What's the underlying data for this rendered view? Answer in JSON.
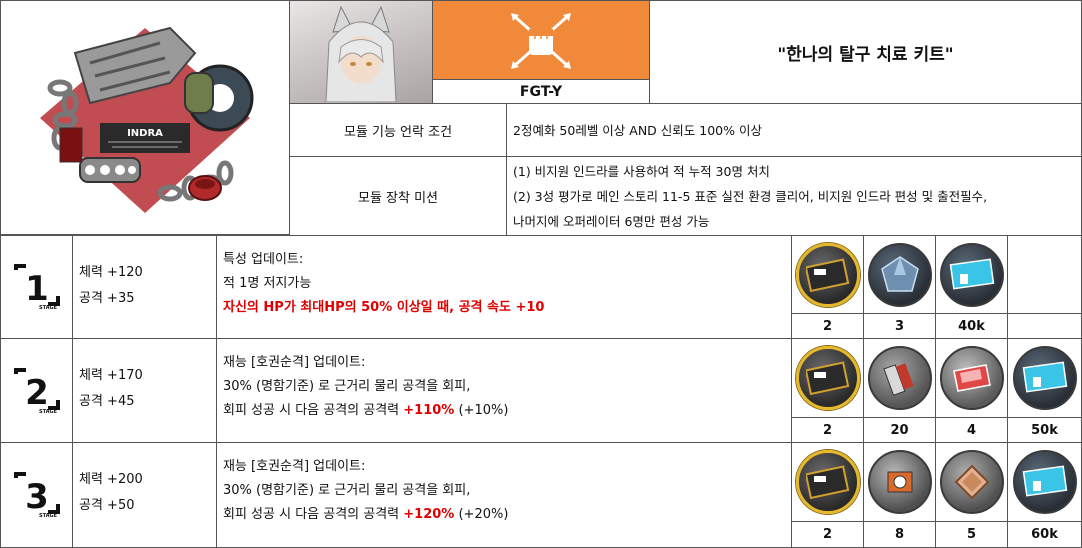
{
  "module": {
    "code": "FGT-Y",
    "title": "\"한나의 탈구 치료 키트\"",
    "brand_text": "INDRA",
    "colors": {
      "logo_bg": "#f08a3a",
      "highlight": "#e00000",
      "border": "#555555"
    }
  },
  "unlock": {
    "label": "모듈 기능 언락 조건",
    "value": "2정예화 50레벨 이상 AND 신뢰도 100% 이상"
  },
  "mission": {
    "label": "모듈 장착 미션",
    "lines": [
      "(1) 비지원 인드라를 사용하여 적 누적 30명 처치",
      "(2) 3성 평가로 메인 스토리 11-5 표준 실전 환경 클리어, 비지원 인드라 편성 및 출전필수,",
      "나머지에 오퍼레이터 6명만 편성 가능"
    ]
  },
  "stages": [
    {
      "num": "1",
      "stage_word": "STAGE",
      "hp": "체력 +120",
      "atk": "공격 +35",
      "desc": [
        "특성 업데이트:",
        "적 1명 저지가능"
      ],
      "desc_red": "자신의 HP가 최대HP의 50% 이상일 때, 공격 속도 +10",
      "materials": [
        {
          "icon": "module-data-block-icon",
          "count": "2"
        },
        {
          "icon": "crystal-ore-icon",
          "count": "3"
        },
        {
          "icon": "lmd-ticket-icon",
          "count": "40k"
        },
        {
          "icon": "",
          "count": ""
        }
      ]
    },
    {
      "num": "2",
      "stage_word": "STAGE",
      "hp": "체력 +170",
      "atk": "공격 +45",
      "desc_a": "재능 [호권순격] 업데이트:",
      "desc_b": "30% (명함기준) 로 근거리 물리 공격을 회피,",
      "desc_c_pre": "회피 성공 시 다음 공격의 공격력 ",
      "desc_c_red": "+110%",
      "desc_c_post": " (+10%)",
      "materials": [
        {
          "icon": "module-data-block-icon",
          "count": "2"
        },
        {
          "icon": "tool-chip-icon",
          "count": "20"
        },
        {
          "icon": "red-chip-icon",
          "count": "4"
        },
        {
          "icon": "lmd-ticket-icon",
          "count": "50k"
        }
      ]
    },
    {
      "num": "3",
      "stage_word": "STAGE",
      "hp": "체력 +200",
      "atk": "공격 +50",
      "desc_a": "재능 [호권순격] 업데이트:",
      "desc_b": "30% (명함기준) 로 근거리 물리 공격을 회피,",
      "desc_c_pre": "회피 성공 시 다음 공격의 공격력 ",
      "desc_c_red": "+120%",
      "desc_c_post": " (+20%)",
      "materials": [
        {
          "icon": "module-data-block-icon",
          "count": "2"
        },
        {
          "icon": "engine-part-icon",
          "count": "8"
        },
        {
          "icon": "plate-icon",
          "count": "5"
        },
        {
          "icon": "lmd-ticket-icon",
          "count": "60k"
        }
      ]
    }
  ]
}
